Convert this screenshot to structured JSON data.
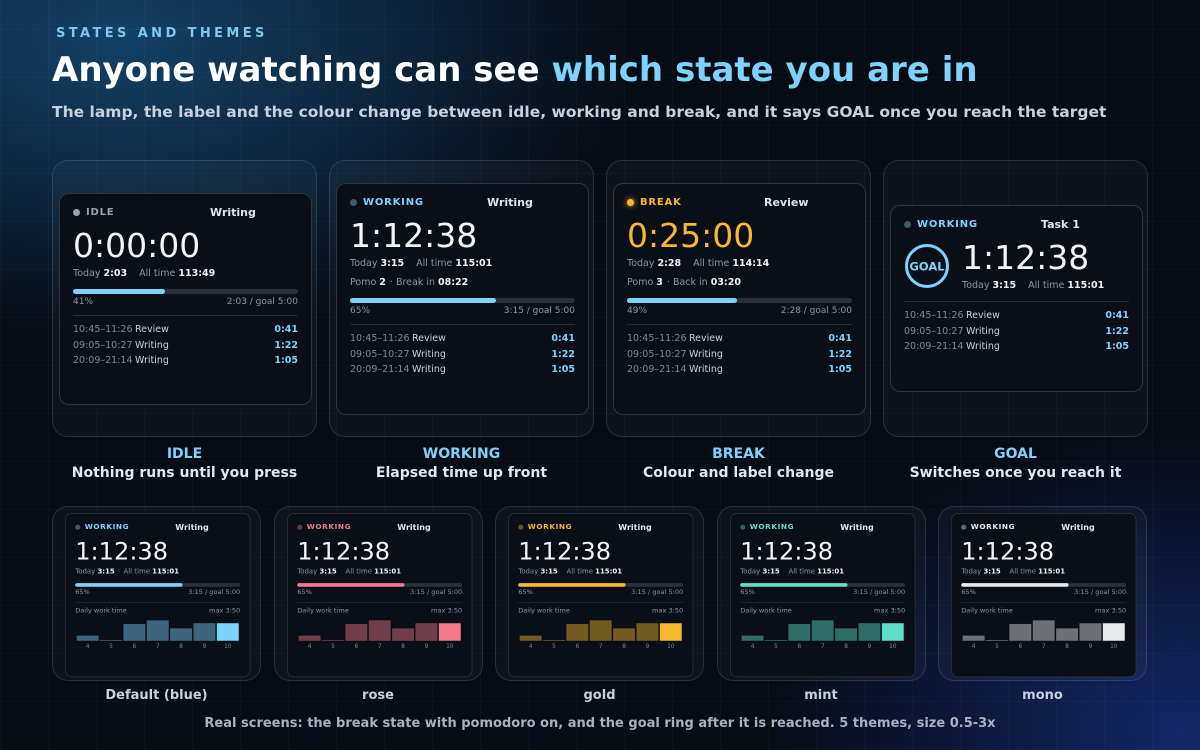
{
  "header": {
    "eyebrow": "STATES AND THEMES",
    "title_plain": "Anyone watching can see ",
    "title_accent": "which state you are in",
    "subtitle": "The lamp, the label and the colour change between idle, working and break, and it says GOAL once you reach the target"
  },
  "states": [
    {
      "color": "#9aa4b0",
      "caption_title": "IDLE",
      "caption_text": "Nothing runs until you press",
      "screen": {
        "status": "IDLE",
        "task": "Writing",
        "time": "0:00:00",
        "today_label": "Today",
        "today": "2:03",
        "alltime_label": "All time",
        "alltime": "113:49",
        "progress": {
          "value": 41,
          "label": "41%"
        },
        "goal": "2:03 / goal 5:00",
        "sessions": [
          {
            "range": "10:45–11:26",
            "task": "Review",
            "duration": "0:41"
          },
          {
            "range": "09:05–10:27",
            "task": "Writing",
            "duration": "1:22"
          },
          {
            "range": "20:09–21:14",
            "task": "Writing",
            "duration": "1:05"
          }
        ]
      }
    },
    {
      "color": "#7dd3fc",
      "caption_title": "WORKING",
      "caption_text": "Elapsed time up front",
      "screen": {
        "status": "WORKING",
        "task": "Writing",
        "time": "1:12:38",
        "today_label": "Today",
        "today": "3:15",
        "alltime_label": "All time",
        "alltime": "115:01",
        "pomo": {
          "label": "Pomo",
          "count": "2",
          "next": "· Break in",
          "time": "08:22"
        },
        "progress": {
          "value": 65,
          "label": "65%"
        },
        "goal": "3:15 / goal 5:00",
        "sessions": [
          {
            "range": "10:45–11:26",
            "task": "Review",
            "duration": "0:41"
          },
          {
            "range": "09:05–10:27",
            "task": "Writing",
            "duration": "1:22"
          },
          {
            "range": "20:09–21:14",
            "task": "Writing",
            "duration": "1:05"
          }
        ]
      }
    },
    {
      "color": "#f5b82e",
      "caption_title": "BREAK",
      "caption_text": "Colour and label change",
      "screen": {
        "status": "BREAK",
        "task": "Review",
        "time": "0:25:00",
        "today_label": "Today",
        "today": "2:28",
        "alltime_label": "All time",
        "alltime": "114:14",
        "pomo": {
          "label": "Pomo",
          "count": "3",
          "next": "· Back in",
          "time": "03:20"
        },
        "progress": {
          "value": 49,
          "label": "49%"
        },
        "goal": "2:28 / goal 5:00",
        "sessions": [
          {
            "range": "10:45–11:26",
            "task": "Review",
            "duration": "0:41"
          },
          {
            "range": "09:05–10:27",
            "task": "Writing",
            "duration": "1:22"
          },
          {
            "range": "20:09–21:14",
            "task": "Writing",
            "duration": "1:05"
          }
        ]
      }
    },
    {
      "color": "#7dd3fc",
      "caption_title": "GOAL",
      "caption_text": "Switches once you reach it",
      "screen": {
        "status": "WORKING",
        "task": "Task 1",
        "ring": "GOAL",
        "time": "1:12:38",
        "today_label": "Today",
        "today": "3:15",
        "alltime_label": "All time",
        "alltime": "115:01",
        "sessions": [
          {
            "range": "10:45–11:26",
            "task": "Review",
            "duration": "0:41"
          },
          {
            "range": "09:05–10:27",
            "task": "Writing",
            "duration": "1:22"
          },
          {
            "range": "20:09–21:14",
            "task": "Writing",
            "duration": "1:05"
          }
        ]
      }
    }
  ],
  "themes": [
    {
      "name": "Default (blue)",
      "color": "#7dd3fc",
      "screen": {
        "status": "WORKING",
        "task": "Writing",
        "time": "1:12:38",
        "today_label": "Today",
        "today": "3:15",
        "alltime_label": "All time",
        "alltime": "115:01",
        "progress": {
          "value": 65,
          "label": "65%"
        },
        "goal": "3:15 / goal 5:00",
        "chart_label": "Daily work time",
        "chart_max": "max 3:50",
        "days": [
          "4",
          "5",
          "6",
          "7",
          "8",
          "9",
          "10"
        ],
        "bars": [
          55,
          5,
          190,
          230,
          140,
          200,
          200
        ]
      }
    },
    {
      "name": "rose",
      "color": "#f27a8c",
      "screen": {
        "status": "WORKING",
        "task": "Writing",
        "time": "1:12:38",
        "today_label": "Today",
        "today": "3:15",
        "alltime_label": "All time",
        "alltime": "115:01",
        "progress": {
          "value": 65,
          "label": "65%"
        },
        "goal": "3:15 / goal 5:00",
        "chart_label": "Daily work time",
        "chart_max": "max 3:50",
        "days": [
          "4",
          "5",
          "6",
          "7",
          "8",
          "9",
          "10"
        ],
        "bars": [
          55,
          5,
          190,
          230,
          140,
          200,
          200
        ]
      }
    },
    {
      "name": "gold",
      "color": "#f5b82e",
      "screen": {
        "status": "WORKING",
        "task": "Writing",
        "time": "1:12:38",
        "today_label": "Today",
        "today": "3:15",
        "alltime_label": "All time",
        "alltime": "115:01",
        "progress": {
          "value": 65,
          "label": "65%"
        },
        "goal": "3:15 / goal 5:00",
        "chart_label": "Daily work time",
        "chart_max": "max 3:50",
        "days": [
          "4",
          "5",
          "6",
          "7",
          "8",
          "9",
          "10"
        ],
        "bars": [
          55,
          5,
          190,
          230,
          140,
          200,
          200
        ]
      }
    },
    {
      "name": "mint",
      "color": "#5fe0c8",
      "screen": {
        "status": "WORKING",
        "task": "Writing",
        "time": "1:12:38",
        "today_label": "Today",
        "today": "3:15",
        "alltime_label": "All time",
        "alltime": "115:01",
        "progress": {
          "value": 65,
          "label": "65%"
        },
        "goal": "3:15 / goal 5:00",
        "chart_label": "Daily work time",
        "chart_max": "max 3:50",
        "days": [
          "4",
          "5",
          "6",
          "7",
          "8",
          "9",
          "10"
        ],
        "bars": [
          55,
          5,
          190,
          230,
          140,
          200,
          200
        ]
      }
    },
    {
      "name": "mono",
      "color": "#e6e8ec",
      "screen": {
        "status": "WORKING",
        "task": "Writing",
        "time": "1:12:38",
        "today_label": "Today",
        "today": "3:15",
        "alltime_label": "All time",
        "alltime": "115:01",
        "progress": {
          "value": 65,
          "label": "65%"
        },
        "goal": "3:15 / goal 5:00",
        "chart_label": "Daily work time",
        "chart_max": "max 3:50",
        "days": [
          "4",
          "5",
          "6",
          "7",
          "8",
          "9",
          "10"
        ],
        "bars": [
          55,
          5,
          190,
          230,
          140,
          200,
          200
        ]
      }
    }
  ],
  "footer": "Real screens: the break state with pomodoro on, and the goal ring after it is reached. 5 themes, size 0.5-3x"
}
